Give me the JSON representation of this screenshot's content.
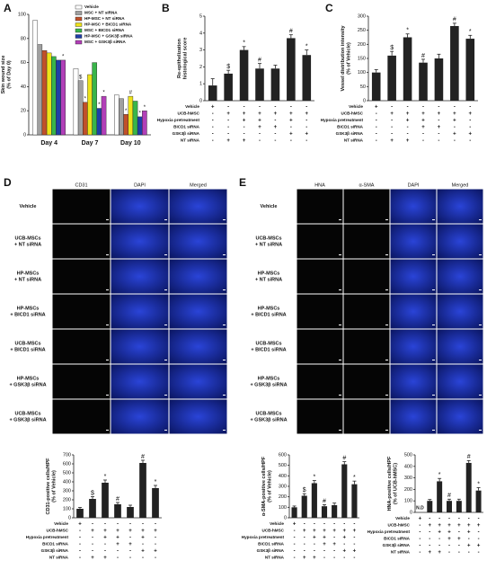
{
  "panels": [
    "A",
    "B",
    "C",
    "D",
    "E"
  ],
  "chart_data": [
    {
      "type": "bar",
      "y_label": [
        "Skin wound size",
        "(% of Day 0)"
      ],
      "categories": [
        "Day 4",
        "Day 7",
        "Day 10"
      ],
      "series": [
        {
          "name": "Vehicle",
          "color": "#ffffff",
          "values": [
            95,
            55,
            33
          ],
          "annotations": [
            null,
            null,
            null
          ]
        },
        {
          "name": "MSC + NT siRNA",
          "color": "#a0a0a0",
          "values": [
            75,
            45,
            30
          ],
          "annotations": [
            null,
            "$",
            null
          ]
        },
        {
          "name": "HP-MSC + NT siRNA",
          "color": "#c0502a",
          "values": [
            70,
            27,
            17
          ],
          "annotations": [
            null,
            "*",
            "*"
          ]
        },
        {
          "name": "HP-MSC + BICD1 siRNA",
          "color": "#ede21a",
          "values": [
            68,
            50,
            32
          ],
          "annotations": [
            null,
            null,
            "#"
          ]
        },
        {
          "name": "MSC + BICD1 siRNA",
          "color": "#39b54a",
          "values": [
            65,
            60,
            28
          ],
          "annotations": [
            null,
            null,
            null
          ]
        },
        {
          "name": "HP-MSC + GSK3β siRNA",
          "color": "#1f3fa8",
          "values": [
            62,
            22,
            15
          ],
          "annotations": [
            null,
            "*",
            "*"
          ]
        },
        {
          "name": "MSC + GSK3β siRNA",
          "color": "#b23fb8",
          "values": [
            62,
            32,
            20
          ],
          "annotations": [
            "*",
            "*",
            "*"
          ]
        }
      ],
      "ylim": [
        0,
        100
      ],
      "yticks": [
        0,
        20,
        40,
        60,
        80,
        100
      ]
    },
    {
      "type": "bar",
      "y_label": [
        "Re-epithelization",
        "histological score"
      ],
      "color": "#222222",
      "values": [
        0.9,
        1.6,
        3.0,
        1.9,
        1.9,
        3.7,
        2.7
      ],
      "errors": [
        0.4,
        0.2,
        0.2,
        0.3,
        0.2,
        0.2,
        0.3
      ],
      "annotations": [
        null,
        "$",
        "*",
        "#",
        null,
        "#",
        "*"
      ],
      "ylim": [
        0,
        5
      ],
      "yticks": [
        0,
        1,
        2,
        3,
        4,
        5
      ],
      "conditions": [
        {
          "label": "Vehicle",
          "signs": [
            "+",
            "-",
            "-",
            "-",
            "-",
            "-",
            "-"
          ]
        },
        {
          "label": "UCB-hMSC",
          "signs": [
            "-",
            "+",
            "+",
            "+",
            "+",
            "+",
            "+"
          ]
        },
        {
          "label": "Hypoxia pretreatment",
          "signs": [
            "-",
            "-",
            "+",
            "+",
            "-",
            "+",
            "-"
          ]
        },
        {
          "label": "BICD1 siRNA",
          "signs": [
            "-",
            "-",
            "-",
            "+",
            "+",
            "-",
            "-"
          ]
        },
        {
          "label": "GSK3β siRNA",
          "signs": [
            "-",
            "-",
            "-",
            "-",
            "-",
            "+",
            "+"
          ]
        },
        {
          "label": "NT siRNA",
          "signs": [
            "-",
            "+",
            "+",
            "-",
            "-",
            "-",
            "-"
          ]
        }
      ]
    },
    {
      "type": "bar",
      "y_label": [
        "Vessel distribution intensity",
        "(% of Vehicle)"
      ],
      "color": "#222222",
      "values": [
        100,
        160,
        225,
        135,
        150,
        265,
        220
      ],
      "errors": [
        10,
        15,
        12,
        12,
        15,
        10,
        12
      ],
      "annotations": [
        null,
        "$",
        "*",
        "#",
        null,
        "#",
        "*"
      ],
      "ylim": [
        0,
        300
      ],
      "yticks": [
        0,
        50,
        100,
        150,
        200,
        250,
        300
      ],
      "conditions": [
        {
          "label": "Vehicle",
          "signs": [
            "+",
            "-",
            "-",
            "-",
            "-",
            "-",
            "-"
          ]
        },
        {
          "label": "UCB-hMSC",
          "signs": [
            "-",
            "+",
            "+",
            "+",
            "+",
            "+",
            "+"
          ]
        },
        {
          "label": "Hypoxia pretreatment",
          "signs": [
            "-",
            "-",
            "+",
            "+",
            "-",
            "+",
            "-"
          ]
        },
        {
          "label": "BICD1 siRNA",
          "signs": [
            "-",
            "-",
            "-",
            "+",
            "+",
            "-",
            "-"
          ]
        },
        {
          "label": "GSK3β siRNA",
          "signs": [
            "-",
            "-",
            "-",
            "-",
            "-",
            "+",
            "+"
          ]
        },
        {
          "label": "NT siRNA",
          "signs": [
            "-",
            "+",
            "+",
            "-",
            "-",
            "-",
            "-"
          ]
        }
      ]
    },
    {
      "type": "bar",
      "y_label": [
        "CD31-positive cells/HPF",
        "(% of Vehicle)"
      ],
      "color": "#222222",
      "values": [
        100,
        210,
        390,
        150,
        120,
        610,
        330
      ],
      "errors": [
        15,
        25,
        30,
        20,
        20,
        30,
        30
      ],
      "annotations": [
        null,
        "$",
        "*",
        "#",
        null,
        "#",
        "*"
      ],
      "ylim": [
        0,
        700
      ],
      "yticks": [
        0,
        100,
        200,
        300,
        400,
        500,
        600,
        700
      ],
      "conditions": [
        {
          "label": "Vehicle",
          "signs": [
            "+",
            "-",
            "-",
            "-",
            "-",
            "-",
            "-"
          ]
        },
        {
          "label": "UCB-hMSC",
          "signs": [
            "-",
            "+",
            "+",
            "+",
            "+",
            "+",
            "+"
          ]
        },
        {
          "label": "Hypoxia pretreatment",
          "signs": [
            "-",
            "-",
            "+",
            "+",
            "-",
            "+",
            "-"
          ]
        },
        {
          "label": "BICD1 siRNA",
          "signs": [
            "-",
            "-",
            "-",
            "+",
            "+",
            "-",
            "-"
          ]
        },
        {
          "label": "GSK3β siRNA",
          "signs": [
            "-",
            "-",
            "-",
            "-",
            "-",
            "+",
            "+"
          ]
        },
        {
          "label": "NT siRNA",
          "signs": [
            "-",
            "+",
            "+",
            "-",
            "-",
            "-",
            "-"
          ]
        }
      ]
    },
    {
      "type": "bar",
      "y_label": [
        "α-SMA-positive cells/HPF",
        "(% of Vehicle)"
      ],
      "color": "#222222",
      "values": [
        100,
        210,
        330,
        110,
        120,
        510,
        320
      ],
      "errors": [
        12,
        20,
        25,
        15,
        20,
        25,
        30
      ],
      "annotations": [
        null,
        "$",
        "*",
        "#",
        null,
        "#",
        "*"
      ],
      "ylim": [
        0,
        600
      ],
      "yticks": [
        0,
        100,
        200,
        300,
        400,
        500,
        600
      ],
      "conditions": [
        {
          "label": "Vehicle",
          "signs": [
            "+",
            "-",
            "-",
            "-",
            "-",
            "-",
            "-"
          ]
        },
        {
          "label": "UCB-hMSC",
          "signs": [
            "-",
            "+",
            "+",
            "+",
            "+",
            "+",
            "+"
          ]
        },
        {
          "label": "Hypoxia pretreatment",
          "signs": [
            "-",
            "-",
            "+",
            "+",
            "-",
            "+",
            "-"
          ]
        },
        {
          "label": "BICD1 siRNA",
          "signs": [
            "-",
            "-",
            "-",
            "+",
            "+",
            "-",
            "-"
          ]
        },
        {
          "label": "GSK3β siRNA",
          "signs": [
            "-",
            "-",
            "-",
            "-",
            "-",
            "+",
            "+"
          ]
        },
        {
          "label": "NT siRNA",
          "signs": [
            "-",
            "+",
            "+",
            "-",
            "-",
            "-",
            "-"
          ]
        }
      ]
    },
    {
      "type": "bar",
      "y_label": [
        "HNA-positive cells/HPF",
        "(% of UCB-hMSC)"
      ],
      "color": "#222222",
      "values": [
        null,
        100,
        270,
        100,
        100,
        430,
        190
      ],
      "value_labels": [
        "N.D",
        null,
        null,
        null,
        null,
        null,
        null
      ],
      "errors": [
        null,
        12,
        25,
        15,
        15,
        20,
        25
      ],
      "annotations": [
        null,
        null,
        "*",
        "#",
        null,
        "#",
        "*"
      ],
      "ylim": [
        0,
        500
      ],
      "yticks": [
        0,
        100,
        200,
        300,
        400,
        500
      ],
      "conditions": [
        {
          "label": "Vehicle",
          "signs": [
            "+",
            "-",
            "-",
            "-",
            "-",
            "-",
            "-"
          ]
        },
        {
          "label": "UCB-hMSC",
          "signs": [
            "-",
            "+",
            "+",
            "+",
            "+",
            "+",
            "+"
          ]
        },
        {
          "label": "Hypoxia pretreatment",
          "signs": [
            "-",
            "-",
            "+",
            "+",
            "-",
            "+",
            "-"
          ]
        },
        {
          "label": "BICD1 siRNA",
          "signs": [
            "-",
            "-",
            "-",
            "+",
            "+",
            "-",
            "-"
          ]
        },
        {
          "label": "GSK3β siRNA",
          "signs": [
            "-",
            "-",
            "-",
            "-",
            "-",
            "+",
            "+"
          ]
        },
        {
          "label": "NT siRNA",
          "signs": [
            "-",
            "+",
            "+",
            "-",
            "-",
            "-",
            "-"
          ]
        }
      ]
    }
  ],
  "image_grids": [
    {
      "columns": [
        "CD31",
        "DAPI",
        "Merged"
      ],
      "rows": [
        [
          "Vehicle"
        ],
        [
          "UCB-MSCs",
          "+ NT siRNA"
        ],
        [
          "HP-MSCs",
          "+ NT siRNA"
        ],
        [
          "HP-MSCs",
          "+ BICD1 siRNA"
        ],
        [
          "UCB-MSCs",
          "+ BICD1 siRNA"
        ],
        [
          "HP-MSCs",
          "+ GSK3β siRNA"
        ],
        [
          "UCB-MSCs",
          "+ GSK3β siRNA"
        ]
      ]
    },
    {
      "columns": [
        "HNA",
        "α-SMA",
        "DAPI",
        "Merged"
      ],
      "rows": [
        [
          "Vehicle"
        ],
        [
          "UCB-MSCs",
          "+ NT siRNA"
        ],
        [
          "HP-MSCs",
          "+ NT siRNA"
        ],
        [
          "HP-MSCs",
          "+ BICD1 siRNA"
        ],
        [
          "UCB-MSCs",
          "+ BICD1 siRNA"
        ],
        [
          "HP-MSCs",
          "+ GSK3β siRNA"
        ],
        [
          "UCB-MSCs",
          "+ GSK3β siRNA"
        ]
      ]
    }
  ]
}
